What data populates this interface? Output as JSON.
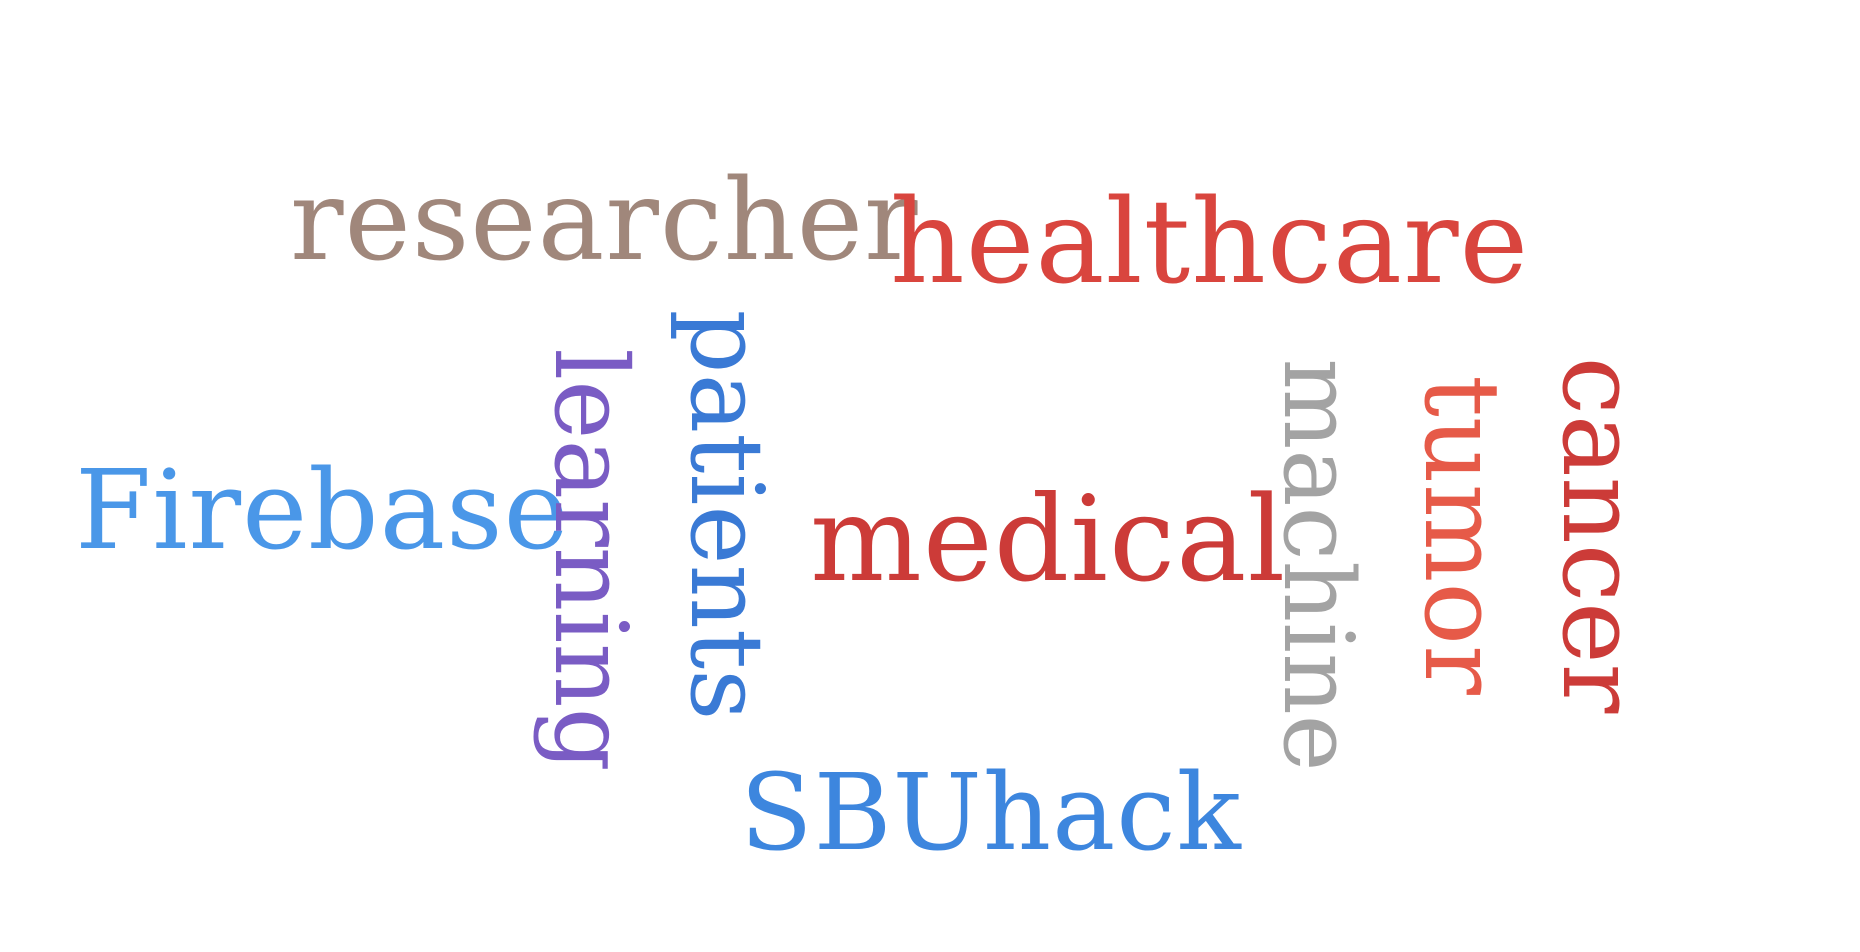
{
  "word_cloud": {
    "words": [
      {
        "text": "researcher",
        "color": "#a0877b",
        "orientation": "horizontal"
      },
      {
        "text": "healthcare",
        "color": "#d9453e",
        "orientation": "horizontal"
      },
      {
        "text": "Firebase",
        "color": "#4a97e8",
        "orientation": "horizontal"
      },
      {
        "text": "medical",
        "color": "#cc3b38",
        "orientation": "horizontal"
      },
      {
        "text": "SBUhack",
        "color": "#3d86de",
        "orientation": "horizontal"
      },
      {
        "text": "learning",
        "color": "#7a5cc4",
        "orientation": "vertical"
      },
      {
        "text": "patients",
        "color": "#3a7ad5",
        "orientation": "vertical"
      },
      {
        "text": "machine",
        "color": "#a3a3a3",
        "orientation": "vertical"
      },
      {
        "text": "tumor",
        "color": "#e65a48",
        "orientation": "vertical"
      },
      {
        "text": "cancer",
        "color": "#cc3b38",
        "orientation": "vertical"
      }
    ]
  }
}
